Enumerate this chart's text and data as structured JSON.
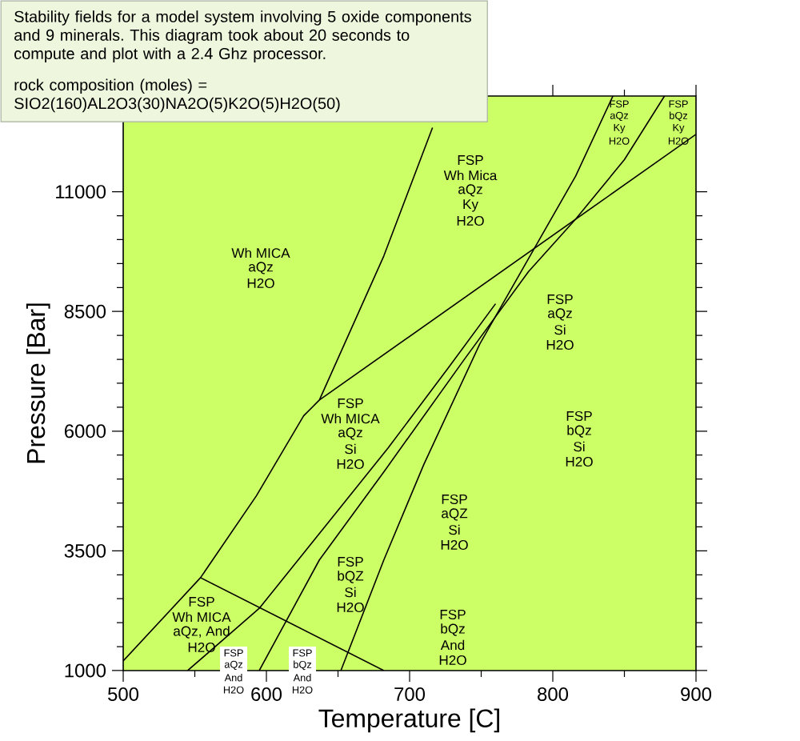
{
  "chart_data": {
    "type": "line",
    "title": "Stability fields for a model system involving 5 oxide components and 9 minerals. This diagram took about 20 seconds to compute and plot with a 2.4 Ghz processor.",
    "subtitle": "rock composition (moles) = SIO2(160)AL2O3(30)NA2O(5)K2O(5)H2O(50)",
    "xlabel": "Temperature [C]",
    "ylabel": "Pressure [Bar]",
    "xlim": [
      500,
      900
    ],
    "ylim": [
      1000,
      13000
    ],
    "xticks": [
      500,
      600,
      700,
      800,
      900
    ],
    "yticks": [
      1000,
      3500,
      6000,
      8500,
      11000
    ],
    "series": [
      {
        "color": "#000000",
        "x": [
          500,
          554,
          593,
          626,
          637,
          682,
          716
        ],
        "values": [
          1200,
          2940,
          4650,
          6320,
          6650,
          9660,
          12340
        ]
      },
      {
        "color": "#000000",
        "x": [
          637,
          900
        ],
        "values": [
          6650,
          12200
        ]
      },
      {
        "color": "#000000",
        "x": [
          652,
          682,
          710,
          749,
          786,
          816,
          842
        ],
        "values": [
          1000,
          3310,
          5310,
          7820,
          9760,
          11330,
          13000
        ]
      },
      {
        "color": "#000000",
        "x": [
          595,
          637,
          682,
          738,
          783,
          816,
          850,
          878
        ],
        "values": [
          1000,
          3310,
          5150,
          7490,
          9330,
          10430,
          11670,
          13000
        ]
      },
      {
        "color": "#000000",
        "x": [
          545,
          595,
          649,
          685,
          727,
          760
        ],
        "values": [
          1000,
          2300,
          4310,
          5650,
          7320,
          8660
        ]
      },
      {
        "color": "#000000",
        "x": [
          554,
          682
        ],
        "values": [
          2940,
          1000
        ]
      }
    ],
    "annotations": [
      "Wh MICA",
      "aQz",
      "H2O",
      "FSP",
      "Wh Mica",
      "aQz",
      "Ky",
      "H2O",
      "FSP",
      "aQz",
      "Ky",
      "H2O",
      "FSP",
      "bQz",
      "Ky",
      "H2O",
      "FSP",
      "aQz",
      "Si",
      "H2O",
      "FSP",
      "bQz",
      "Si",
      "H2O",
      "FSP",
      "Wh MICA",
      "aQz",
      "Si",
      "H2O",
      "FSP",
      "aQZ",
      "Si",
      "H2O",
      "FSP",
      "bQZ",
      "Si",
      "H2O",
      "FSP",
      "Wh MICA",
      "aQz, And",
      "H2O",
      "FSP",
      "aQz",
      "And",
      "H2O",
      "FSP",
      "bQz",
      "And",
      "H2O",
      "FSP",
      "bQz",
      "And",
      "H2O"
    ]
  }
}
